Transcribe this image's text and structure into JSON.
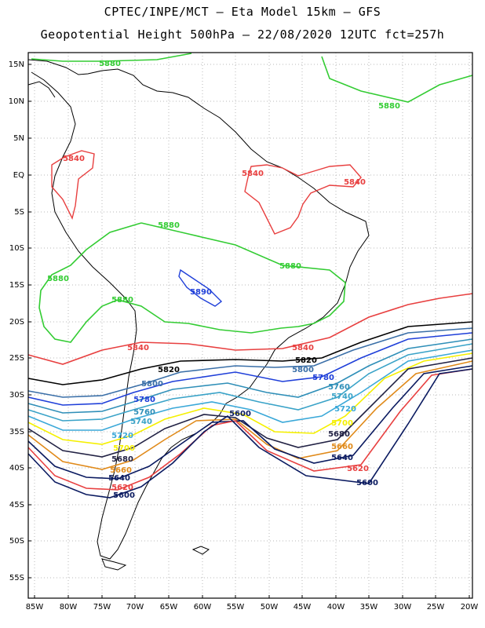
{
  "title_line1": "CPTEC/INPE/MCT —  Eta Model 15km — GFS",
  "title_line2": "Geopotential Height 500hPa — 22/08/2020 12UTC fct=257h",
  "lat_ticks": [
    "15N",
    "10N",
    "5N",
    "EQ",
    "5S",
    "10S",
    "15S",
    "20S",
    "25S",
    "30S",
    "35S",
    "40S",
    "45S",
    "50S",
    "55S"
  ],
  "lon_ticks": [
    "85W",
    "80W",
    "75W",
    "70W",
    "65W",
    "60W",
    "55W",
    "50W",
    "45W",
    "40W",
    "35W",
    "30W",
    "25W",
    "20W"
  ],
  "colors": {
    "c5880": "#33cc33",
    "c5840": "#e84040",
    "c5820": "#000000",
    "c5800": "#3a6fa8",
    "c5780": "#1f3fd9",
    "c5760": "#2f8fb8",
    "c5740": "#3aa3c8",
    "c5720": "#3aa8d8",
    "c5700": "#f5f000",
    "c5680": "#222244",
    "c5660": "#e08a1a",
    "c5640": "#0a1a60",
    "c5620": "#e84040",
    "c5600": "#0a1a60",
    "c5890": "#1f3fd9",
    "land": "#000000"
  },
  "contour_labels": {
    "l5880a": "5880",
    "l5880b": "5880",
    "l5880c": "5880",
    "l5880d": "5880",
    "l5880e": "5880",
    "l5880f": "5880",
    "l5840a": "5840",
    "l5840b": "5840",
    "l5840c": "5840",
    "l5840d": "5840",
    "l5840e": "5840",
    "l5890": "5890",
    "l5820a": "5820",
    "l5820b": "5820",
    "l5800a": "5800",
    "l5800b": "5800",
    "l5780a": "5780",
    "l5780b": "5780",
    "l5760a": "5760",
    "l5760b": "5760",
    "l5740a": "5740",
    "l5740b": "5740",
    "l5720a": "5720",
    "l5720b": "5720",
    "l5700a": "5700",
    "l5700b": "5700",
    "l5680a": "5680",
    "l5680b": "5680",
    "l5660a": "5660",
    "l5660b": "5660",
    "l5640a": "5640",
    "l5640b": "5640",
    "l5620a": "5620",
    "l5620b": "5620",
    "l5600a": "5600",
    "l5600b": "5600",
    "l5600c": "5600"
  }
}
